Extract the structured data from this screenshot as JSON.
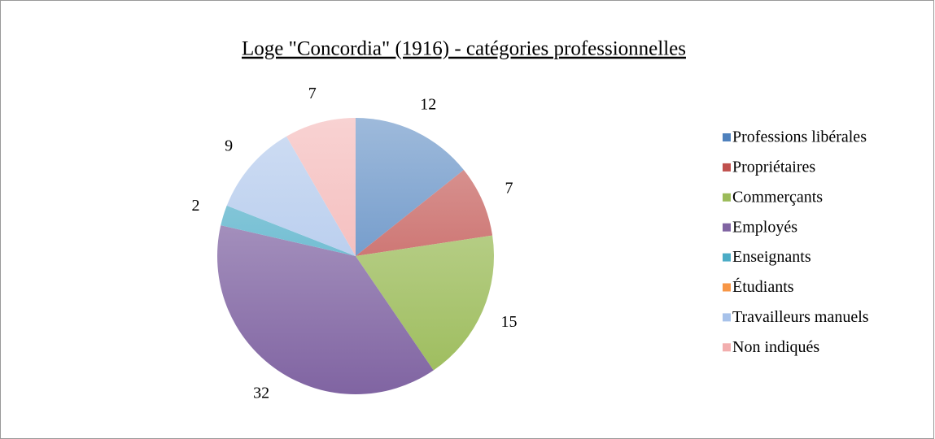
{
  "chart_data": {
    "type": "pie",
    "title": "Loge \"Concordia\" (1916) - catégories professionnelles",
    "categories": [
      "Professions libérales",
      "Propriétaires",
      "Commerçants",
      "Employés",
      "Enseignants",
      "Étudiants",
      "Travailleurs manuels",
      "Non indiqués"
    ],
    "values": [
      12,
      7,
      15,
      32,
      2,
      0,
      9,
      7
    ],
    "colors": [
      "#4f81bd",
      "#c0504d",
      "#9bbb59",
      "#8064a2",
      "#4bacc6",
      "#f79646",
      "#a7c2ea",
      "#f2aeae"
    ],
    "legend": "right"
  }
}
